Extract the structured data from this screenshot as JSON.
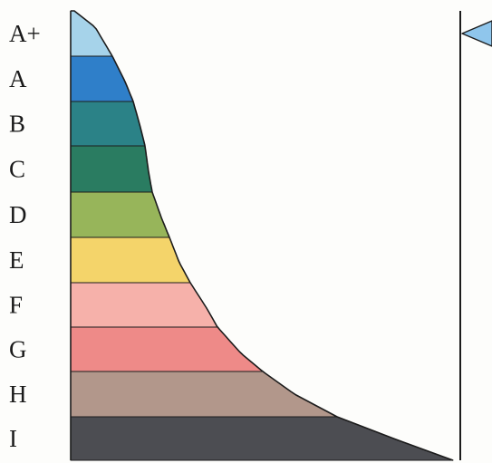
{
  "scale": {
    "grades": [
      {
        "label": "A+",
        "color": "#a6d3ea"
      },
      {
        "label": "A",
        "color": "#2f7fc9"
      },
      {
        "label": "B",
        "color": "#2b8287"
      },
      {
        "label": "C",
        "color": "#2a7c61"
      },
      {
        "label": "D",
        "color": "#97b55a"
      },
      {
        "label": "E",
        "color": "#f4d46a"
      },
      {
        "label": "F",
        "color": "#f6b1aa"
      },
      {
        "label": "G",
        "color": "#ee8a88"
      },
      {
        "label": "H",
        "color": "#b2978b"
      },
      {
        "label": "I",
        "color": "#4c4d52"
      }
    ],
    "pointer": {
      "grade": "A+",
      "color": "#8fc6ec"
    },
    "outline_color": "#1c1c1c",
    "background": "#fdfdfb"
  }
}
